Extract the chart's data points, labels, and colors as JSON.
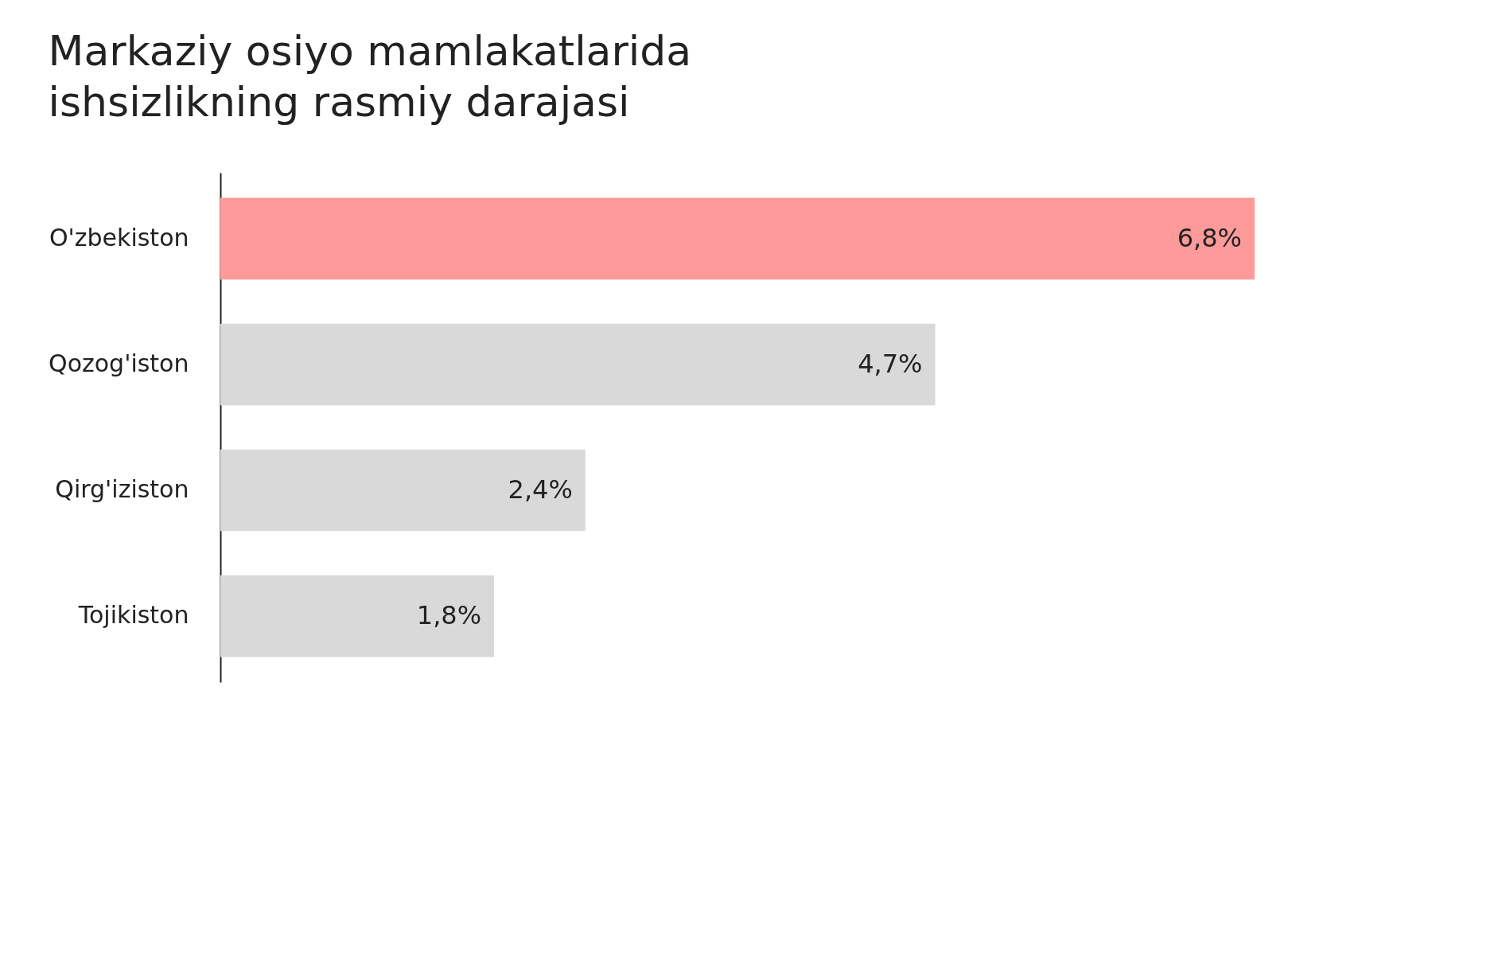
{
  "chart_data": {
    "type": "bar",
    "orientation": "horizontal",
    "title": "Markaziy osiyo mamlakatlarida ishsizlikning rasmiy darajasi",
    "categories": [
      "O'zbekiston",
      "Qozog'iston",
      "Qirg'iziston",
      "Tojikiston"
    ],
    "values": [
      6.8,
      4.7,
      2.4,
      1.8
    ],
    "colors": [
      "#ff9a9a",
      "#d9d9d9",
      "#d9d9d9",
      "#d9d9d9"
    ],
    "value_labels": [
      "6,8%",
      "4,7%",
      "2,4%",
      "1,8%"
    ],
    "grid": false
  }
}
